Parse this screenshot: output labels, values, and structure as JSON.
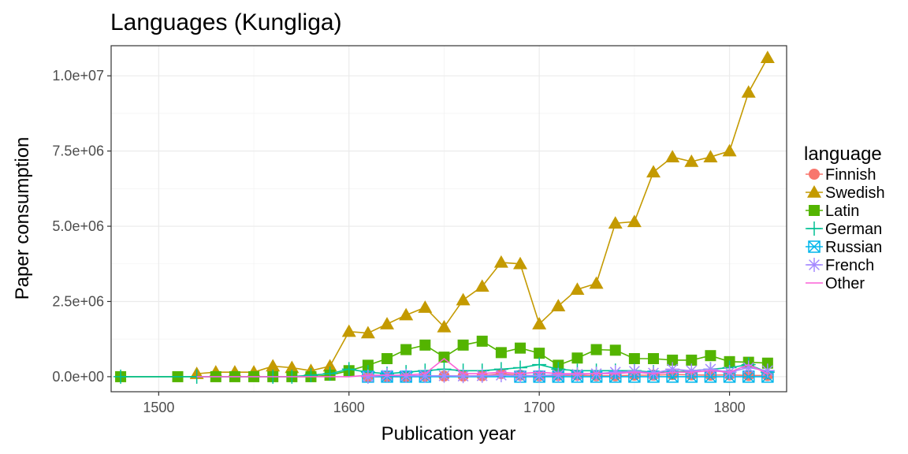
{
  "chart_data": {
    "type": "line",
    "title": "Languages (Kungliga)",
    "xlabel": "Publication year",
    "ylabel": "Paper consumption",
    "xlim": [
      1475,
      1830
    ],
    "ylim": [
      -500000,
      11000000
    ],
    "x_ticks": [
      1500,
      1600,
      1700,
      1800
    ],
    "x_tick_labels": [
      "1500",
      "1600",
      "1700",
      "1800"
    ],
    "y_ticks": [
      0,
      2500000,
      5000000,
      7500000,
      10000000
    ],
    "y_tick_labels": [
      "0.0e+00",
      "2.5e+06",
      "5.0e+06",
      "7.5e+06",
      "1.0e+07"
    ],
    "grid": true,
    "legend_title": "language",
    "legend_position": "right",
    "series": [
      {
        "name": "Finnish",
        "color": "#F8766D",
        "shape": "circle",
        "x": [
          1610,
          1620,
          1630,
          1640,
          1650,
          1660,
          1670,
          1680,
          1690,
          1700,
          1710,
          1720,
          1730,
          1740,
          1750,
          1760,
          1770,
          1780,
          1790,
          1800,
          1810,
          1820
        ],
        "y": [
          0,
          0,
          0,
          20000,
          20000,
          20000,
          30000,
          100000,
          50000,
          30000,
          40000,
          50000,
          30000,
          30000,
          50000,
          50000,
          70000,
          60000,
          50000,
          60000,
          40000,
          40000
        ]
      },
      {
        "name": "Swedish",
        "color": "#C49A00",
        "shape": "triangle",
        "x": [
          1520,
          1530,
          1540,
          1550,
          1560,
          1570,
          1580,
          1590,
          1600,
          1610,
          1620,
          1630,
          1640,
          1650,
          1660,
          1670,
          1680,
          1690,
          1700,
          1710,
          1720,
          1730,
          1740,
          1750,
          1760,
          1770,
          1780,
          1790,
          1800,
          1810,
          1820
        ],
        "y": [
          100000,
          150000,
          150000,
          150000,
          350000,
          300000,
          200000,
          350000,
          1500000,
          1450000,
          1750000,
          2050000,
          2300000,
          1650000,
          2550000,
          3000000,
          3800000,
          3750000,
          1750000,
          2350000,
          2900000,
          3100000,
          5100000,
          5150000,
          6800000,
          7300000,
          7150000,
          7300000,
          7500000,
          9450000,
          10600000
        ]
      },
      {
        "name": "Latin",
        "color": "#53B400",
        "shape": "square",
        "x": [
          1480,
          1510,
          1530,
          1540,
          1550,
          1560,
          1570,
          1580,
          1590,
          1600,
          1610,
          1620,
          1630,
          1640,
          1650,
          1660,
          1670,
          1680,
          1690,
          1700,
          1710,
          1720,
          1730,
          1740,
          1750,
          1760,
          1770,
          1780,
          1790,
          1800,
          1810,
          1820
        ],
        "y": [
          0,
          0,
          0,
          0,
          0,
          0,
          0,
          0,
          50000,
          200000,
          380000,
          600000,
          900000,
          1050000,
          650000,
          1050000,
          1180000,
          800000,
          950000,
          780000,
          380000,
          620000,
          900000,
          880000,
          600000,
          600000,
          550000,
          550000,
          700000,
          500000,
          480000,
          450000
        ]
      },
      {
        "name": "German",
        "color": "#00C094",
        "shape": "plus",
        "x": [
          1480,
          1520,
          1560,
          1570,
          1580,
          1590,
          1600,
          1610,
          1620,
          1630,
          1640,
          1650,
          1660,
          1670,
          1680,
          1690,
          1700,
          1710,
          1720,
          1730,
          1740,
          1750,
          1760,
          1770,
          1780,
          1790,
          1800,
          1810,
          1820
        ],
        "y": [
          0,
          0,
          0,
          0,
          50000,
          100000,
          250000,
          150000,
          100000,
          150000,
          200000,
          250000,
          200000,
          200000,
          250000,
          300000,
          400000,
          250000,
          200000,
          200000,
          200000,
          200000,
          150000,
          150000,
          200000,
          250000,
          300000,
          400000,
          150000
        ]
      },
      {
        "name": "Russian",
        "color": "#00B6EB",
        "shape": "square-x",
        "x": [
          1610,
          1620,
          1630,
          1640,
          1690,
          1700,
          1710,
          1720,
          1730,
          1740,
          1750,
          1760,
          1770,
          1780,
          1790,
          1800,
          1810,
          1820
        ],
        "y": [
          0,
          0,
          0,
          0,
          0,
          0,
          0,
          0,
          0,
          0,
          0,
          0,
          0,
          0,
          0,
          0,
          0,
          0
        ]
      },
      {
        "name": "French",
        "color": "#A58AFF",
        "shape": "asterisk",
        "x": [
          1610,
          1620,
          1630,
          1640,
          1650,
          1660,
          1670,
          1680,
          1690,
          1700,
          1710,
          1720,
          1730,
          1740,
          1750,
          1760,
          1770,
          1780,
          1790,
          1800,
          1810,
          1820
        ],
        "y": [
          0,
          50000,
          30000,
          30000,
          30000,
          20000,
          30000,
          50000,
          30000,
          40000,
          60000,
          80000,
          100000,
          150000,
          180000,
          120000,
          250000,
          200000,
          250000,
          150000,
          300000,
          200000
        ]
      },
      {
        "name": "Other",
        "color": "#FB61D7",
        "shape": "line",
        "x": [
          1520,
          1560,
          1600,
          1610,
          1620,
          1630,
          1640,
          1650,
          1660,
          1670,
          1680,
          1690,
          1700,
          1710,
          1720,
          1730,
          1740,
          1750,
          1760,
          1770,
          1780,
          1790,
          1800,
          1810,
          1820
        ],
        "y": [
          0,
          0,
          0,
          50000,
          50000,
          50000,
          100000,
          600000,
          100000,
          100000,
          150000,
          100000,
          150000,
          100000,
          100000,
          100000,
          100000,
          150000,
          100000,
          150000,
          150000,
          200000,
          150000,
          400000,
          100000
        ]
      }
    ]
  }
}
